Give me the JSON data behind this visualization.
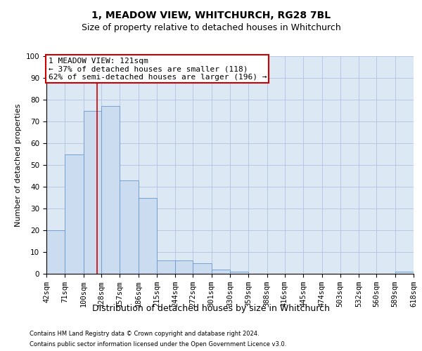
{
  "title1": "1, MEADOW VIEW, WHITCHURCH, RG28 7BL",
  "title2": "Size of property relative to detached houses in Whitchurch",
  "xlabel": "Distribution of detached houses by size in Whitchurch",
  "ylabel": "Number of detached properties",
  "footer1": "Contains HM Land Registry data © Crown copyright and database right 2024.",
  "footer2": "Contains public sector information licensed under the Open Government Licence v3.0.",
  "annotation_line1": "1 MEADOW VIEW: 121sqm",
  "annotation_line2": "← 37% of detached houses are smaller (118)",
  "annotation_line3": "62% of semi-detached houses are larger (196) →",
  "bar_color": "#ccdcf0",
  "bar_edge_color": "#6699cc",
  "vline_color": "#cc0000",
  "annotation_box_edge_color": "#cc0000",
  "grid_color": "#aabbdd",
  "background_color": "#dde8f5",
  "bins": [
    42,
    71,
    100,
    128,
    157,
    186,
    215,
    244,
    272,
    301,
    330,
    359,
    388,
    416,
    445,
    474,
    503,
    532,
    560,
    589,
    618
  ],
  "counts": [
    20,
    55,
    75,
    77,
    43,
    35,
    6,
    6,
    5,
    2,
    1,
    0,
    0,
    0,
    0,
    0,
    0,
    0,
    0,
    1
  ],
  "vline_x": 121,
  "ylim": [
    0,
    100
  ],
  "yticks": [
    0,
    10,
    20,
    30,
    40,
    50,
    60,
    70,
    80,
    90,
    100
  ],
  "title1_fontsize": 10,
  "title2_fontsize": 9,
  "xlabel_fontsize": 9,
  "ylabel_fontsize": 8,
  "tick_fontsize": 7.5,
  "annotation_fontsize": 8,
  "footer_fontsize": 6
}
